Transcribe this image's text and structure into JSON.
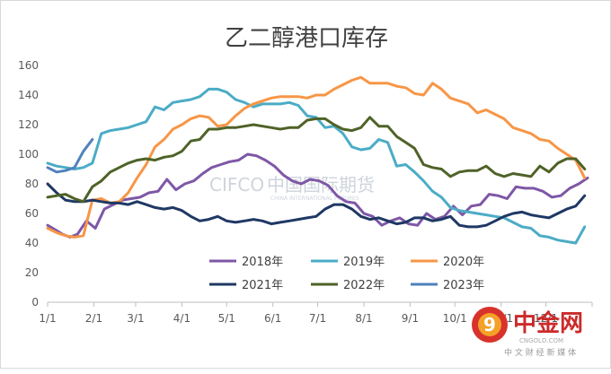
{
  "chart_data": {
    "type": "line",
    "title": "乙二醇港口库存",
    "xlabel": "",
    "ylabel": "",
    "ylim": [
      0,
      160
    ],
    "yticks": [
      0,
      20,
      40,
      60,
      80,
      100,
      120,
      140,
      160
    ],
    "xlim": [
      0,
      365
    ],
    "xticks": [
      {
        "label": "1/1",
        "day": 0
      },
      {
        "label": "2/1",
        "day": 31
      },
      {
        "label": "3/1",
        "day": 59
      },
      {
        "label": "4/1",
        "day": 90
      },
      {
        "label": "5/1",
        "day": 120
      },
      {
        "label": "6/1",
        "day": 151
      },
      {
        "label": "7/1",
        "day": 181
      },
      {
        "label": "8/1",
        "day": 212
      },
      {
        "label": "9/1",
        "day": 243
      },
      {
        "label": "10/1",
        "day": 273
      },
      {
        "label": "11/1",
        "day": 304
      },
      {
        "label": "12/1",
        "day": 334
      }
    ],
    "grid": false,
    "legend_position": "bottom-center",
    "series": [
      {
        "name": "2018年",
        "color": "#7e57a6",
        "points": [
          [
            0,
            52
          ],
          [
            5,
            49
          ],
          [
            10,
            46
          ],
          [
            15,
            44
          ],
          [
            20,
            46
          ],
          [
            26,
            55
          ],
          [
            32,
            50
          ],
          [
            38,
            63
          ],
          [
            44,
            66
          ],
          [
            50,
            69
          ],
          [
            56,
            70
          ],
          [
            62,
            71
          ],
          [
            68,
            74
          ],
          [
            74,
            75
          ],
          [
            80,
            83
          ],
          [
            86,
            76
          ],
          [
            92,
            80
          ],
          [
            98,
            82
          ],
          [
            104,
            87
          ],
          [
            110,
            91
          ],
          [
            116,
            93
          ],
          [
            122,
            95
          ],
          [
            128,
            96
          ],
          [
            134,
            100
          ],
          [
            140,
            99
          ],
          [
            146,
            96
          ],
          [
            152,
            92
          ],
          [
            158,
            86
          ],
          [
            164,
            82
          ],
          [
            170,
            80
          ],
          [
            176,
            83
          ],
          [
            182,
            82
          ],
          [
            188,
            79
          ],
          [
            194,
            72
          ],
          [
            200,
            68
          ],
          [
            206,
            67
          ],
          [
            212,
            60
          ],
          [
            218,
            58
          ],
          [
            224,
            52
          ],
          [
            230,
            55
          ],
          [
            236,
            57
          ],
          [
            242,
            53
          ],
          [
            248,
            52
          ],
          [
            254,
            60
          ],
          [
            260,
            56
          ],
          [
            266,
            58
          ],
          [
            272,
            65
          ],
          [
            278,
            59
          ],
          [
            284,
            65
          ],
          [
            290,
            66
          ],
          [
            296,
            73
          ],
          [
            302,
            72
          ],
          [
            308,
            70
          ],
          [
            314,
            78
          ],
          [
            320,
            77
          ],
          [
            326,
            77
          ],
          [
            332,
            75
          ],
          [
            338,
            71
          ],
          [
            344,
            72
          ],
          [
            350,
            77
          ],
          [
            356,
            80
          ],
          [
            362,
            84
          ]
        ]
      },
      {
        "name": "2019年",
        "color": "#4bacc6",
        "points": [
          [
            0,
            94
          ],
          [
            6,
            92
          ],
          [
            12,
            91
          ],
          [
            18,
            90
          ],
          [
            24,
            91
          ],
          [
            30,
            94
          ],
          [
            36,
            114
          ],
          [
            42,
            116
          ],
          [
            48,
            117
          ],
          [
            54,
            118
          ],
          [
            60,
            120
          ],
          [
            66,
            122
          ],
          [
            72,
            132
          ],
          [
            78,
            130
          ],
          [
            84,
            135
          ],
          [
            90,
            136
          ],
          [
            96,
            137
          ],
          [
            102,
            139
          ],
          [
            108,
            144
          ],
          [
            114,
            144
          ],
          [
            120,
            142
          ],
          [
            126,
            137
          ],
          [
            132,
            135
          ],
          [
            138,
            132
          ],
          [
            144,
            134
          ],
          [
            150,
            134
          ],
          [
            156,
            134
          ],
          [
            162,
            135
          ],
          [
            168,
            133
          ],
          [
            174,
            126
          ],
          [
            180,
            125
          ],
          [
            186,
            118
          ],
          [
            192,
            119
          ],
          [
            198,
            114
          ],
          [
            204,
            105
          ],
          [
            210,
            103
          ],
          [
            216,
            104
          ],
          [
            222,
            110
          ],
          [
            228,
            108
          ],
          [
            234,
            92
          ],
          [
            240,
            93
          ],
          [
            246,
            88
          ],
          [
            252,
            82
          ],
          [
            258,
            75
          ],
          [
            264,
            71
          ],
          [
            270,
            64
          ],
          [
            276,
            62
          ],
          [
            282,
            61
          ],
          [
            288,
            60
          ],
          [
            294,
            59
          ],
          [
            300,
            58
          ],
          [
            306,
            57
          ],
          [
            312,
            54
          ],
          [
            318,
            51
          ],
          [
            324,
            50
          ],
          [
            330,
            45
          ],
          [
            336,
            44
          ],
          [
            342,
            42
          ],
          [
            348,
            41
          ],
          [
            354,
            40
          ],
          [
            360,
            51
          ]
        ]
      },
      {
        "name": "2020年",
        "color": "#f79646",
        "points": [
          [
            0,
            50
          ],
          [
            6,
            47
          ],
          [
            12,
            45
          ],
          [
            18,
            44
          ],
          [
            24,
            45
          ],
          [
            30,
            69
          ],
          [
            36,
            70
          ],
          [
            42,
            67
          ],
          [
            48,
            68
          ],
          [
            54,
            74
          ],
          [
            60,
            84
          ],
          [
            66,
            93
          ],
          [
            72,
            105
          ],
          [
            78,
            110
          ],
          [
            84,
            117
          ],
          [
            90,
            120
          ],
          [
            96,
            124
          ],
          [
            102,
            126
          ],
          [
            108,
            125
          ],
          [
            114,
            119
          ],
          [
            120,
            120
          ],
          [
            126,
            126
          ],
          [
            132,
            131
          ],
          [
            138,
            134
          ],
          [
            144,
            136
          ],
          [
            150,
            138
          ],
          [
            156,
            139
          ],
          [
            162,
            139
          ],
          [
            168,
            139
          ],
          [
            174,
            138
          ],
          [
            180,
            140
          ],
          [
            186,
            140
          ],
          [
            192,
            144
          ],
          [
            198,
            147
          ],
          [
            204,
            150
          ],
          [
            210,
            152
          ],
          [
            216,
            148
          ],
          [
            222,
            148
          ],
          [
            228,
            148
          ],
          [
            234,
            146
          ],
          [
            240,
            145
          ],
          [
            246,
            141
          ],
          [
            252,
            140
          ],
          [
            258,
            148
          ],
          [
            264,
            144
          ],
          [
            270,
            138
          ],
          [
            276,
            136
          ],
          [
            282,
            134
          ],
          [
            288,
            128
          ],
          [
            294,
            130
          ],
          [
            300,
            127
          ],
          [
            306,
            124
          ],
          [
            312,
            118
          ],
          [
            318,
            116
          ],
          [
            324,
            114
          ],
          [
            330,
            110
          ],
          [
            336,
            109
          ],
          [
            342,
            104
          ],
          [
            348,
            100
          ],
          [
            354,
            96
          ],
          [
            360,
            84
          ]
        ]
      },
      {
        "name": "2021年",
        "color": "#1f3864",
        "points": [
          [
            0,
            80
          ],
          [
            6,
            74
          ],
          [
            12,
            69
          ],
          [
            18,
            68
          ],
          [
            24,
            68
          ],
          [
            30,
            69
          ],
          [
            36,
            68
          ],
          [
            42,
            67
          ],
          [
            48,
            67
          ],
          [
            54,
            66
          ],
          [
            60,
            68
          ],
          [
            66,
            66
          ],
          [
            72,
            64
          ],
          [
            78,
            63
          ],
          [
            84,
            64
          ],
          [
            90,
            62
          ],
          [
            96,
            58
          ],
          [
            102,
            55
          ],
          [
            108,
            56
          ],
          [
            114,
            58
          ],
          [
            120,
            55
          ],
          [
            126,
            54
          ],
          [
            132,
            55
          ],
          [
            138,
            56
          ],
          [
            144,
            55
          ],
          [
            150,
            53
          ],
          [
            156,
            54
          ],
          [
            162,
            55
          ],
          [
            168,
            56
          ],
          [
            174,
            57
          ],
          [
            180,
            58
          ],
          [
            186,
            63
          ],
          [
            192,
            66
          ],
          [
            198,
            66
          ],
          [
            204,
            63
          ],
          [
            210,
            58
          ],
          [
            216,
            56
          ],
          [
            222,
            57
          ],
          [
            228,
            55
          ],
          [
            234,
            53
          ],
          [
            240,
            54
          ],
          [
            246,
            57
          ],
          [
            252,
            57
          ],
          [
            258,
            55
          ],
          [
            264,
            56
          ],
          [
            270,
            58
          ],
          [
            276,
            52
          ],
          [
            282,
            51
          ],
          [
            288,
            51
          ],
          [
            294,
            52
          ],
          [
            300,
            55
          ],
          [
            306,
            58
          ],
          [
            312,
            60
          ],
          [
            318,
            61
          ],
          [
            324,
            59
          ],
          [
            330,
            58
          ],
          [
            336,
            57
          ],
          [
            342,
            60
          ],
          [
            348,
            63
          ],
          [
            354,
            65
          ],
          [
            360,
            72
          ]
        ]
      },
      {
        "name": "2022年",
        "color": "#4f6228",
        "points": [
          [
            0,
            71
          ],
          [
            6,
            72
          ],
          [
            12,
            73
          ],
          [
            18,
            70
          ],
          [
            24,
            68
          ],
          [
            30,
            78
          ],
          [
            36,
            82
          ],
          [
            42,
            88
          ],
          [
            48,
            91
          ],
          [
            54,
            94
          ],
          [
            60,
            96
          ],
          [
            66,
            97
          ],
          [
            72,
            96
          ],
          [
            78,
            98
          ],
          [
            84,
            99
          ],
          [
            90,
            102
          ],
          [
            96,
            109
          ],
          [
            102,
            110
          ],
          [
            108,
            117
          ],
          [
            114,
            117
          ],
          [
            120,
            118
          ],
          [
            126,
            118
          ],
          [
            132,
            119
          ],
          [
            138,
            120
          ],
          [
            144,
            119
          ],
          [
            150,
            118
          ],
          [
            156,
            117
          ],
          [
            162,
            118
          ],
          [
            168,
            118
          ],
          [
            174,
            123
          ],
          [
            180,
            124
          ],
          [
            186,
            124
          ],
          [
            192,
            120
          ],
          [
            198,
            117
          ],
          [
            204,
            116
          ],
          [
            210,
            118
          ],
          [
            216,
            125
          ],
          [
            222,
            119
          ],
          [
            228,
            119
          ],
          [
            234,
            112
          ],
          [
            240,
            108
          ],
          [
            246,
            104
          ],
          [
            252,
            93
          ],
          [
            258,
            91
          ],
          [
            264,
            90
          ],
          [
            270,
            85
          ],
          [
            276,
            88
          ],
          [
            282,
            89
          ],
          [
            288,
            89
          ],
          [
            294,
            92
          ],
          [
            300,
            87
          ],
          [
            306,
            85
          ],
          [
            312,
            87
          ],
          [
            318,
            86
          ],
          [
            324,
            85
          ],
          [
            330,
            92
          ],
          [
            336,
            88
          ],
          [
            342,
            94
          ],
          [
            348,
            97
          ],
          [
            354,
            97
          ],
          [
            360,
            90
          ]
        ]
      },
      {
        "name": "2023年",
        "color": "#4f81bd",
        "points": [
          [
            0,
            91
          ],
          [
            6,
            88
          ],
          [
            12,
            89
          ],
          [
            18,
            91
          ],
          [
            24,
            102
          ],
          [
            30,
            110
          ]
        ]
      }
    ]
  },
  "watermark": {
    "center_text": "中国国际期货",
    "center_brand": "CIFCO",
    "center_sub": "CHINA INTERNATIONAL FUTURES",
    "logo_text": "中金网",
    "logo_domain": "CNGOLD.COM",
    "logo_tagline": "中 文 财 经 新 媒 体"
  }
}
